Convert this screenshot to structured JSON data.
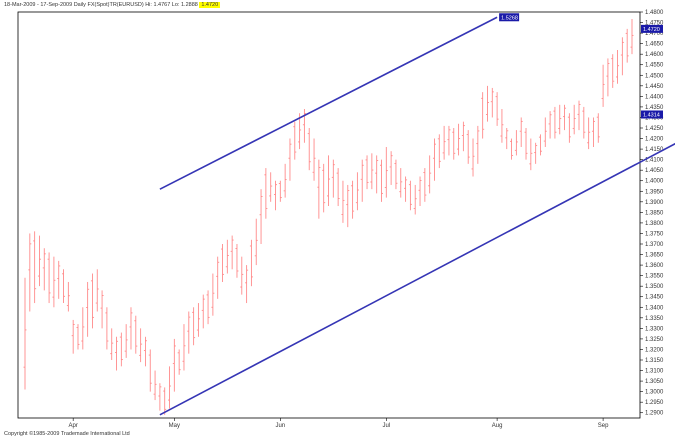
{
  "header": {
    "text": "18-Mar-2009 - 17-Sep-2009 Daily FX(Spot)TR(EURUSD) Hi: 1.4767 Lo: 1.2888",
    "highlight": "1.4720"
  },
  "footer": {
    "copyright": "Copyright ©1985-2009 Trademade International Ltd"
  },
  "watermark": "",
  "colors": {
    "bars": "#ff8a8a",
    "channel": "#3535b5",
    "price_tag_bg": "#1a1aa8",
    "highlight": "#ffff00"
  },
  "chart_data": {
    "type": "ohlc",
    "x_tick_labels": [
      "Apr",
      "May",
      "Jun",
      "Jul",
      "Aug",
      "Sep"
    ],
    "y_tick_labels": [
      "1.2900",
      "1.2950",
      "1.3000",
      "1.3050",
      "1.3100",
      "1.3150",
      "1.3200",
      "1.3250",
      "1.3300",
      "1.3350",
      "1.3400",
      "1.3450",
      "1.3500",
      "1.3550",
      "1.3600",
      "1.3650",
      "1.3700",
      "1.3750",
      "1.3800",
      "1.3850",
      "1.3900",
      "1.3950",
      "1.4000",
      "1.4050",
      "1.4100",
      "1.4150",
      "1.4200",
      "1.4250",
      "1.4300",
      "1.4350",
      "1.4400",
      "1.4450",
      "1.4500",
      "1.4550",
      "1.4600",
      "1.4650",
      "1.4700",
      "1.4750",
      "1.4800"
    ],
    "ylim": [
      1.2875,
      1.48
    ],
    "price_tags": [
      {
        "label": "1.5268",
        "value": 1.4775,
        "pos": "upper-channel-end"
      },
      {
        "label": "1.4720",
        "value": 1.472
      },
      {
        "label": "1.4314",
        "value": 1.4314
      }
    ],
    "series": [
      {
        "bars": [
          [
            1.301,
            1.354
          ],
          [
            1.338,
            1.375
          ],
          [
            1.342,
            1.376
          ],
          [
            1.35,
            1.374
          ],
          [
            1.348,
            1.368
          ],
          [
            1.342,
            1.366
          ],
          [
            1.34,
            1.364
          ],
          [
            1.344,
            1.362
          ],
          [
            1.342,
            1.358
          ],
          [
            1.338,
            1.352
          ],
          [
            1.318,
            1.334
          ],
          [
            1.32,
            1.332
          ],
          [
            1.32,
            1.34
          ],
          [
            1.326,
            1.352
          ],
          [
            1.33,
            1.356
          ],
          [
            1.338,
            1.358
          ],
          [
            1.33,
            1.348
          ],
          [
            1.32,
            1.34
          ],
          [
            1.315,
            1.33
          ],
          [
            1.31,
            1.326
          ],
          [
            1.312,
            1.328
          ],
          [
            1.316,
            1.332
          ],
          [
            1.32,
            1.34
          ],
          [
            1.318,
            1.336
          ],
          [
            1.314,
            1.33
          ],
          [
            1.312,
            1.326
          ],
          [
            1.3,
            1.32
          ],
          [
            1.296,
            1.31
          ],
          [
            1.291,
            1.304
          ],
          [
            1.289,
            1.302
          ],
          [
            1.292,
            1.312
          ],
          [
            1.3,
            1.325
          ],
          [
            1.308,
            1.32
          ],
          [
            1.31,
            1.332
          ],
          [
            1.318,
            1.338
          ],
          [
            1.322,
            1.34
          ],
          [
            1.326,
            1.342
          ],
          [
            1.33,
            1.346
          ],
          [
            1.332,
            1.348
          ],
          [
            1.336,
            1.356
          ],
          [
            1.344,
            1.364
          ],
          [
            1.352,
            1.37
          ],
          [
            1.356,
            1.372
          ],
          [
            1.358,
            1.374
          ],
          [
            1.354,
            1.37
          ],
          [
            1.346,
            1.364
          ],
          [
            1.342,
            1.36
          ],
          [
            1.35,
            1.372
          ],
          [
            1.36,
            1.382
          ],
          [
            1.37,
            1.396
          ],
          [
            1.382,
            1.406
          ],
          [
            1.39,
            1.404
          ],
          [
            1.386,
            1.4
          ],
          [
            1.39,
            1.4
          ],
          [
            1.392,
            1.408
          ],
          [
            1.4,
            1.42
          ],
          [
            1.41,
            1.428
          ],
          [
            1.415,
            1.432
          ],
          [
            1.418,
            1.434
          ],
          [
            1.405,
            1.425
          ],
          [
            1.4,
            1.42
          ],
          [
            1.382,
            1.41
          ],
          [
            1.385,
            1.408
          ],
          [
            1.388,
            1.412
          ],
          [
            1.392,
            1.41
          ],
          [
            1.388,
            1.406
          ],
          [
            1.38,
            1.4
          ],
          [
            1.378,
            1.398
          ],
          [
            1.382,
            1.4
          ],
          [
            1.386,
            1.404
          ],
          [
            1.39,
            1.41
          ],
          [
            1.396,
            1.412
          ],
          [
            1.396,
            1.413
          ],
          [
            1.394,
            1.412
          ],
          [
            1.39,
            1.41
          ],
          [
            1.392,
            1.416
          ],
          [
            1.398,
            1.414
          ],
          [
            1.396,
            1.41
          ],
          [
            1.392,
            1.406
          ],
          [
            1.39,
            1.402
          ],
          [
            1.386,
            1.4
          ],
          [
            1.384,
            1.398
          ],
          [
            1.388,
            1.402
          ],
          [
            1.39,
            1.406
          ],
          [
            1.394,
            1.412
          ],
          [
            1.4,
            1.42
          ],
          [
            1.406,
            1.422
          ],
          [
            1.41,
            1.426
          ],
          [
            1.412,
            1.426
          ],
          [
            1.41,
            1.425
          ],
          [
            1.412,
            1.427
          ],
          [
            1.414,
            1.428
          ],
          [
            1.408,
            1.424
          ],
          [
            1.402,
            1.42
          ],
          [
            1.408,
            1.426
          ],
          [
            1.42,
            1.442
          ],
          [
            1.428,
            1.445
          ],
          [
            1.43,
            1.444
          ],
          [
            1.426,
            1.442
          ],
          [
            1.418,
            1.434
          ],
          [
            1.415,
            1.425
          ],
          [
            1.41,
            1.42
          ],
          [
            1.412,
            1.424
          ],
          [
            1.416,
            1.43
          ],
          [
            1.41,
            1.425
          ],
          [
            1.405,
            1.42
          ],
          [
            1.408,
            1.418
          ],
          [
            1.412,
            1.422
          ],
          [
            1.416,
            1.43
          ],
          [
            1.42,
            1.433
          ],
          [
            1.42,
            1.435
          ],
          [
            1.422,
            1.436
          ],
          [
            1.424,
            1.436
          ],
          [
            1.418,
            1.432
          ],
          [
            1.422,
            1.436
          ],
          [
            1.424,
            1.438
          ],
          [
            1.42,
            1.435
          ],
          [
            1.415,
            1.43
          ],
          [
            1.416,
            1.43
          ],
          [
            1.418,
            1.432
          ],
          [
            1.435,
            1.455
          ],
          [
            1.44,
            1.458
          ],
          [
            1.444,
            1.46
          ],
          [
            1.446,
            1.462
          ],
          [
            1.45,
            1.468
          ],
          [
            1.456,
            1.472
          ],
          [
            1.46,
            1.4767
          ]
        ]
      }
    ],
    "channel": {
      "upper": {
        "start": {
          "bar": 28,
          "price": 1.396
        },
        "end": {
          "bar": 98,
          "price": 1.4775
        }
      },
      "lower": {
        "start": {
          "bar": 28,
          "price": 1.289
        },
        "end": {
          "bar": 137,
          "price": 1.42
        }
      }
    }
  }
}
